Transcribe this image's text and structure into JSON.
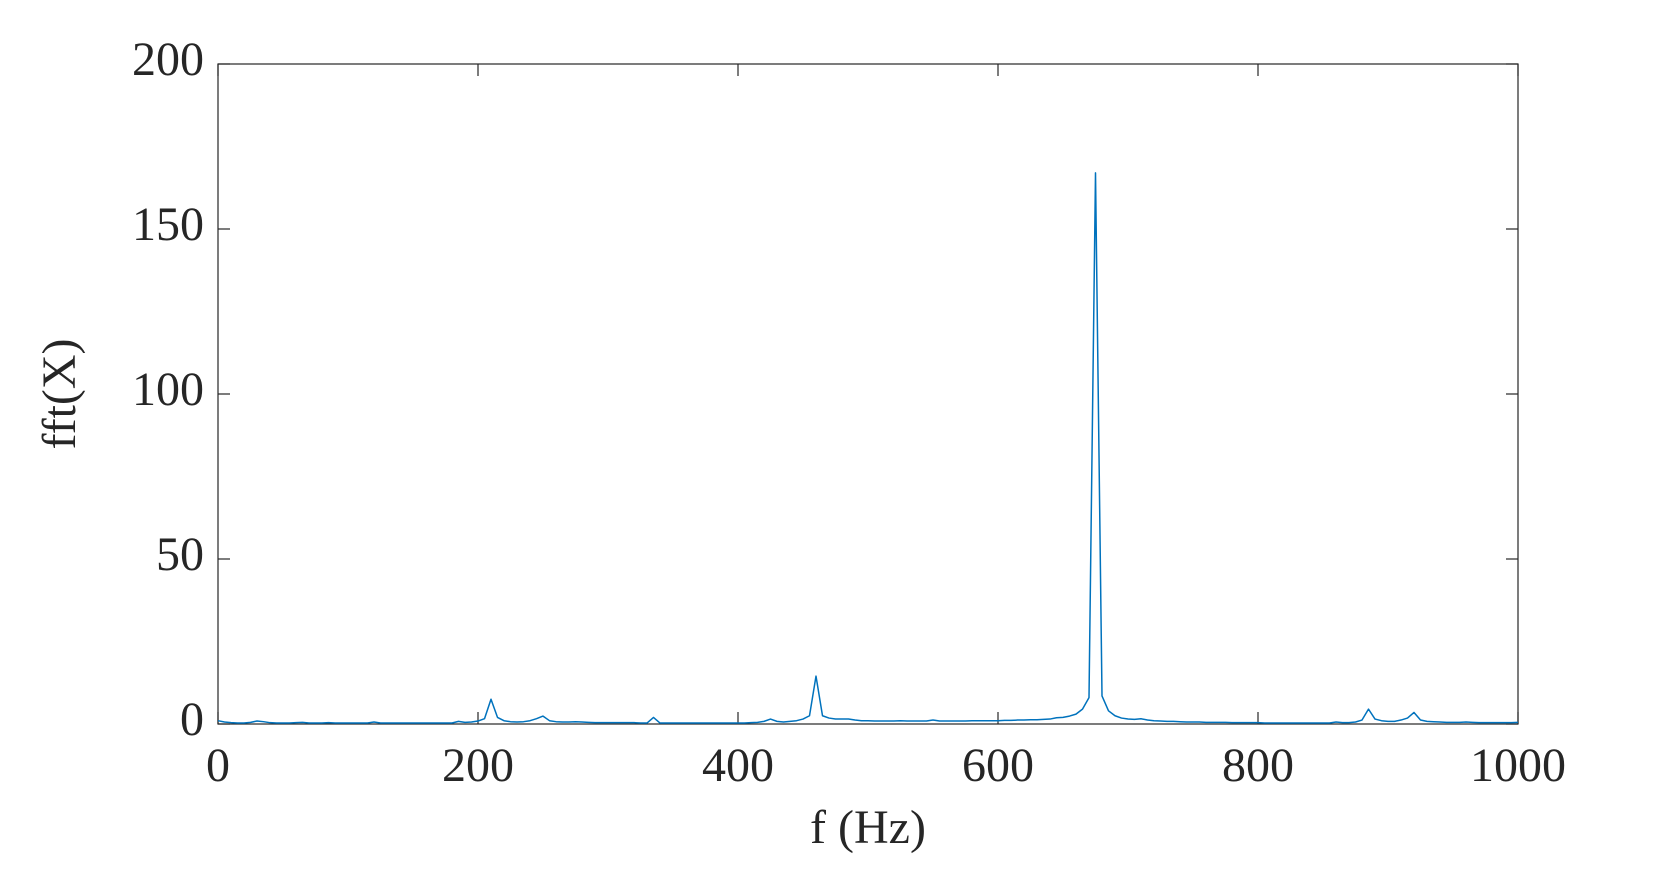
{
  "chart_data": {
    "type": "line",
    "xlabel": "f (Hz)",
    "ylabel": "fft(X)",
    "color": "#0072bd",
    "x": [
      0,
      5,
      10,
      15,
      20,
      25,
      30,
      35,
      40,
      45,
      50,
      55,
      60,
      65,
      70,
      75,
      80,
      85,
      90,
      95,
      100,
      105,
      110,
      115,
      120,
      125,
      130,
      135,
      140,
      145,
      150,
      155,
      160,
      165,
      170,
      175,
      180,
      185,
      190,
      195,
      200,
      205,
      210,
      215,
      220,
      225,
      230,
      235,
      240,
      245,
      250,
      255,
      260,
      265,
      270,
      275,
      280,
      285,
      290,
      295,
      300,
      305,
      310,
      315,
      320,
      325,
      330,
      335,
      340,
      345,
      350,
      355,
      360,
      365,
      370,
      375,
      380,
      385,
      390,
      395,
      400,
      405,
      410,
      415,
      420,
      425,
      430,
      435,
      440,
      445,
      450,
      455,
      460,
      465,
      470,
      475,
      480,
      485,
      490,
      495,
      500,
      505,
      510,
      515,
      520,
      525,
      530,
      535,
      540,
      545,
      550,
      555,
      560,
      565,
      570,
      575,
      580,
      585,
      590,
      595,
      600,
      605,
      610,
      615,
      620,
      625,
      630,
      635,
      640,
      645,
      650,
      655,
      660,
      665,
      670,
      675,
      680,
      685,
      690,
      695,
      700,
      705,
      710,
      715,
      720,
      725,
      730,
      735,
      740,
      745,
      750,
      755,
      760,
      765,
      770,
      775,
      780,
      785,
      790,
      795,
      800,
      805,
      810,
      815,
      820,
      825,
      830,
      835,
      840,
      845,
      850,
      855,
      860,
      865,
      870,
      875,
      880,
      885,
      890,
      895,
      900,
      905,
      910,
      915,
      920,
      925,
      930,
      935,
      940,
      945,
      950,
      955,
      960,
      965,
      970,
      975,
      980,
      985,
      990,
      995,
      1000
    ],
    "values": [
      1.0,
      0.6,
      0.4,
      0.3,
      0.3,
      0.5,
      0.9,
      0.7,
      0.4,
      0.3,
      0.3,
      0.3,
      0.4,
      0.5,
      0.3,
      0.3,
      0.3,
      0.4,
      0.3,
      0.3,
      0.3,
      0.3,
      0.3,
      0.3,
      0.6,
      0.3,
      0.3,
      0.3,
      0.3,
      0.3,
      0.3,
      0.3,
      0.3,
      0.3,
      0.3,
      0.3,
      0.3,
      0.8,
      0.5,
      0.6,
      0.9,
      1.6,
      7.5,
      2.0,
      1.0,
      0.7,
      0.6,
      0.7,
      1.0,
      1.6,
      2.4,
      1.0,
      0.7,
      0.6,
      0.6,
      0.7,
      0.6,
      0.5,
      0.4,
      0.4,
      0.4,
      0.4,
      0.4,
      0.4,
      0.4,
      0.3,
      0.3,
      2.0,
      0.3,
      0.3,
      0.3,
      0.3,
      0.3,
      0.3,
      0.3,
      0.3,
      0.3,
      0.3,
      0.3,
      0.3,
      0.3,
      0.3,
      0.4,
      0.5,
      0.8,
      1.5,
      0.8,
      0.6,
      0.8,
      1.0,
      1.5,
      2.5,
      14.5,
      2.5,
      1.8,
      1.5,
      1.5,
      1.5,
      1.2,
      1.0,
      1.0,
      0.9,
      0.9,
      0.9,
      0.9,
      1.0,
      0.9,
      0.9,
      0.9,
      0.9,
      1.2,
      0.9,
      0.9,
      0.9,
      0.9,
      0.9,
      1.0,
      1.0,
      1.0,
      1.0,
      1.0,
      1.1,
      1.1,
      1.2,
      1.2,
      1.3,
      1.3,
      1.4,
      1.5,
      1.9,
      2.0,
      2.4,
      3.0,
      4.5,
      8.0,
      167,
      8.5,
      4.0,
      2.5,
      1.8,
      1.5,
      1.4,
      1.6,
      1.2,
      1.0,
      0.9,
      0.8,
      0.8,
      0.7,
      0.6,
      0.6,
      0.6,
      0.5,
      0.5,
      0.5,
      0.5,
      0.4,
      0.4,
      0.4,
      0.4,
      0.4,
      0.3,
      0.3,
      0.3,
      0.3,
      0.3,
      0.3,
      0.3,
      0.3,
      0.3,
      0.3,
      0.3,
      0.6,
      0.4,
      0.4,
      0.6,
      1.2,
      4.5,
      1.5,
      1.0,
      0.8,
      0.8,
      1.2,
      1.8,
      3.5,
      1.2,
      0.8,
      0.7,
      0.6,
      0.5,
      0.5,
      0.5,
      0.6,
      0.5,
      0.4,
      0.4,
      0.4,
      0.4,
      0.4,
      0.4,
      0.5
    ],
    "xlim": [
      0,
      1000
    ],
    "ylim": [
      0,
      200
    ],
    "xticks": [
      0,
      200,
      400,
      600,
      800,
      1000
    ],
    "yticks": [
      0,
      50,
      100,
      150,
      200
    ]
  }
}
